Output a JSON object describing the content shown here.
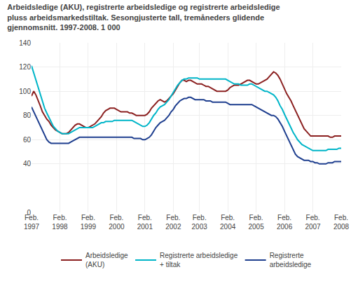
{
  "chart_data": {
    "type": "line",
    "title": "Arbeidsledige (AKU), registrerte arbeidsledige og registrerte arbeidsledige\npluss arbeidsmarkedstiltak. Sesongjusterte tall, tremåneders glidende\ngjennomsnitt. 1997-2008. 1 000",
    "categories": [
      "Feb.\n1997",
      null,
      null,
      null,
      null,
      null,
      null,
      null,
      null,
      null,
      null,
      null,
      null,
      "Feb.\n1998",
      null,
      null,
      null,
      null,
      null,
      null,
      null,
      null,
      null,
      null,
      null,
      null,
      "Feb.\n1999",
      null,
      null,
      null,
      null,
      null,
      null,
      null,
      null,
      null,
      null,
      null,
      null,
      "Feb.\n2000",
      null,
      null,
      null,
      null,
      null,
      null,
      null,
      null,
      null,
      null,
      null,
      null,
      "Feb.\n2001",
      null,
      null,
      null,
      null,
      null,
      null,
      null,
      null,
      null,
      null,
      null,
      null,
      "Feb.\n2002",
      null,
      null,
      null,
      null,
      null,
      null,
      null,
      null,
      null,
      null,
      null,
      "Feb.\n2003",
      null,
      null,
      null,
      null,
      null,
      null,
      null,
      null,
      null,
      null,
      null,
      null,
      "Feb.\n2004",
      null,
      null,
      null,
      null,
      null,
      null,
      null,
      null,
      null,
      null,
      null,
      null,
      "Feb.\n2005",
      null,
      null,
      null,
      null,
      null,
      null,
      null,
      null,
      null,
      null,
      null,
      null,
      "Feb.\n2006",
      null,
      null,
      null,
      null,
      null,
      null,
      null,
      null,
      null,
      null,
      null,
      null,
      "Feb.\n2007",
      null,
      null,
      null,
      null,
      null,
      null,
      null,
      null,
      null,
      null,
      null,
      null,
      "Feb.\n2008"
    ],
    "series": [
      {
        "name": "Arbeidsledige\n(AKU)",
        "color": "#8B2020",
        "values": [
          96,
          100,
          97,
          93,
          88,
          83,
          80,
          77,
          75,
          72,
          70,
          68,
          67,
          66,
          65,
          65,
          65,
          66,
          68,
          70,
          72,
          73,
          73,
          72,
          71,
          70,
          70,
          71,
          72,
          73,
          75,
          77,
          79,
          82,
          84,
          85,
          86,
          86,
          86,
          85,
          84,
          83,
          83,
          83,
          83,
          82,
          82,
          81,
          80,
          80,
          80,
          80,
          80,
          81,
          83,
          86,
          88,
          90,
          92,
          93,
          92,
          91,
          92,
          94,
          96,
          98,
          101,
          104,
          107,
          109,
          109,
          108,
          109,
          109,
          108,
          107,
          106,
          106,
          106,
          105,
          104,
          104,
          103,
          102,
          101,
          100,
          100,
          100,
          100,
          100,
          101,
          103,
          104,
          105,
          105,
          105,
          106,
          107,
          108,
          109,
          109,
          108,
          107,
          106,
          106,
          107,
          108,
          109,
          110,
          112,
          114,
          116,
          115,
          113,
          110,
          106,
          101,
          98,
          95,
          92,
          88,
          84,
          80,
          76,
          72,
          69,
          67,
          65,
          63,
          63,
          63,
          63,
          63,
          63,
          63,
          63,
          63,
          62,
          62,
          63,
          63,
          63,
          63
        ]
      },
      {
        "name": "Registrerte arbeidsledige\n+ tiltak",
        "color": "#00B5C8",
        "values": [
          121,
          115,
          109,
          103,
          97,
          91,
          86,
          82,
          78,
          74,
          71,
          69,
          67,
          66,
          65,
          65,
          65,
          65,
          66,
          67,
          68,
          69,
          70,
          70,
          70,
          70,
          70,
          70,
          70,
          71,
          72,
          73,
          74,
          74,
          75,
          75,
          75,
          75,
          76,
          76,
          76,
          76,
          76,
          76,
          76,
          76,
          76,
          75,
          74,
          73,
          72,
          71,
          71,
          72,
          74,
          77,
          80,
          82,
          85,
          87,
          88,
          89,
          91,
          93,
          96,
          99,
          102,
          105,
          107,
          109,
          110,
          110,
          111,
          111,
          111,
          111,
          111,
          110,
          110,
          110,
          110,
          110,
          110,
          110,
          110,
          110,
          110,
          110,
          110,
          110,
          109,
          108,
          107,
          106,
          106,
          106,
          105,
          105,
          105,
          105,
          106,
          106,
          105,
          104,
          103,
          102,
          101,
          100,
          100,
          99,
          98,
          97,
          95,
          92,
          88,
          85,
          81,
          77,
          73,
          70,
          66,
          63,
          60,
          58,
          56,
          55,
          54,
          53,
          52,
          51,
          51,
          51,
          51,
          51,
          51,
          51,
          52,
          52,
          52,
          52,
          52,
          53,
          53
        ]
      },
      {
        "name": "Registrerte\narbeidsledige",
        "color": "#1F3F8F",
        "values": [
          87,
          83,
          79,
          75,
          71,
          67,
          63,
          60,
          58,
          57,
          57,
          57,
          57,
          57,
          57,
          57,
          57,
          57,
          58,
          59,
          60,
          61,
          62,
          62,
          62,
          62,
          62,
          62,
          62,
          62,
          62,
          62,
          62,
          62,
          62,
          62,
          62,
          62,
          62,
          62,
          62,
          62,
          62,
          62,
          62,
          62,
          62,
          61,
          61,
          61,
          61,
          60,
          60,
          61,
          62,
          64,
          67,
          70,
          72,
          74,
          75,
          76,
          78,
          80,
          83,
          85,
          88,
          90,
          92,
          93,
          94,
          94,
          95,
          95,
          94,
          93,
          93,
          93,
          93,
          93,
          92,
          92,
          92,
          91,
          91,
          91,
          91,
          91,
          91,
          91,
          90,
          89,
          89,
          89,
          89,
          89,
          89,
          89,
          89,
          89,
          89,
          89,
          88,
          87,
          86,
          85,
          84,
          83,
          82,
          81,
          80,
          80,
          79,
          77,
          74,
          71,
          67,
          63,
          59,
          55,
          51,
          48,
          46,
          45,
          44,
          43,
          43,
          43,
          42,
          42,
          41,
          41,
          40,
          40,
          40,
          40,
          41,
          41,
          41,
          42,
          42,
          42,
          42
        ]
      }
    ],
    "ylim": [
      0,
      140
    ],
    "yticks": [
      0,
      40,
      60,
      80,
      100,
      120,
      140
    ],
    "grid": true,
    "legend": "bottom"
  }
}
